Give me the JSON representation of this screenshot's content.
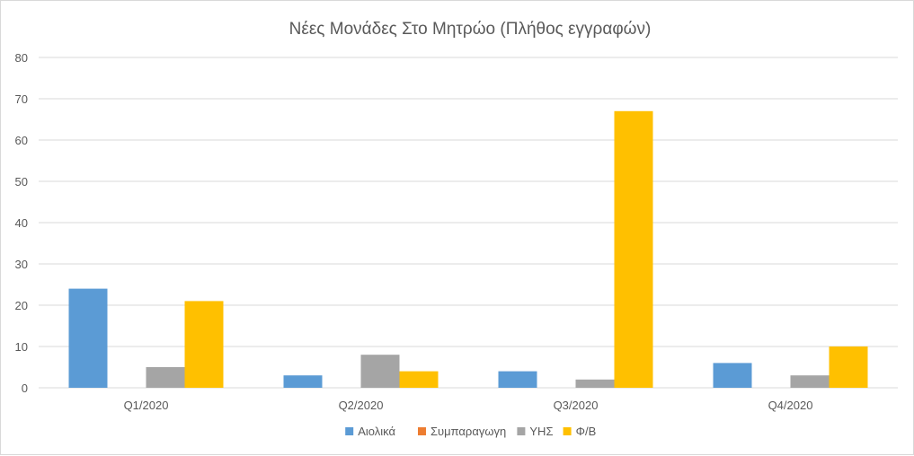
{
  "chart_data": {
    "type": "bar",
    "title": "Νέες Μονάδες Στο Μητρώο (Πλήθος εγγραφών)",
    "xlabel": "",
    "ylabel": "",
    "categories": [
      "Q1/2020",
      "Q2/2020",
      "Q3/2020",
      "Q4/2020"
    ],
    "series": [
      {
        "name": "Αιολικά",
        "color": "#5b9bd5",
        "values": [
          24,
          3,
          4,
          6
        ]
      },
      {
        "name": "Συμπαραγωγη",
        "color": "#ed7d31",
        "values": [
          0,
          0,
          0,
          0
        ]
      },
      {
        "name": "ΥΗΣ",
        "color": "#a5a5a5",
        "values": [
          5,
          8,
          2,
          3
        ]
      },
      {
        "name": "Φ/Β",
        "color": "#ffc000",
        "values": [
          21,
          4,
          67,
          10
        ]
      }
    ],
    "ylim": [
      0,
      80
    ],
    "yticks": [
      0,
      10,
      20,
      30,
      40,
      50,
      60,
      70,
      80
    ],
    "grid": true,
    "legend_position": "bottom"
  }
}
